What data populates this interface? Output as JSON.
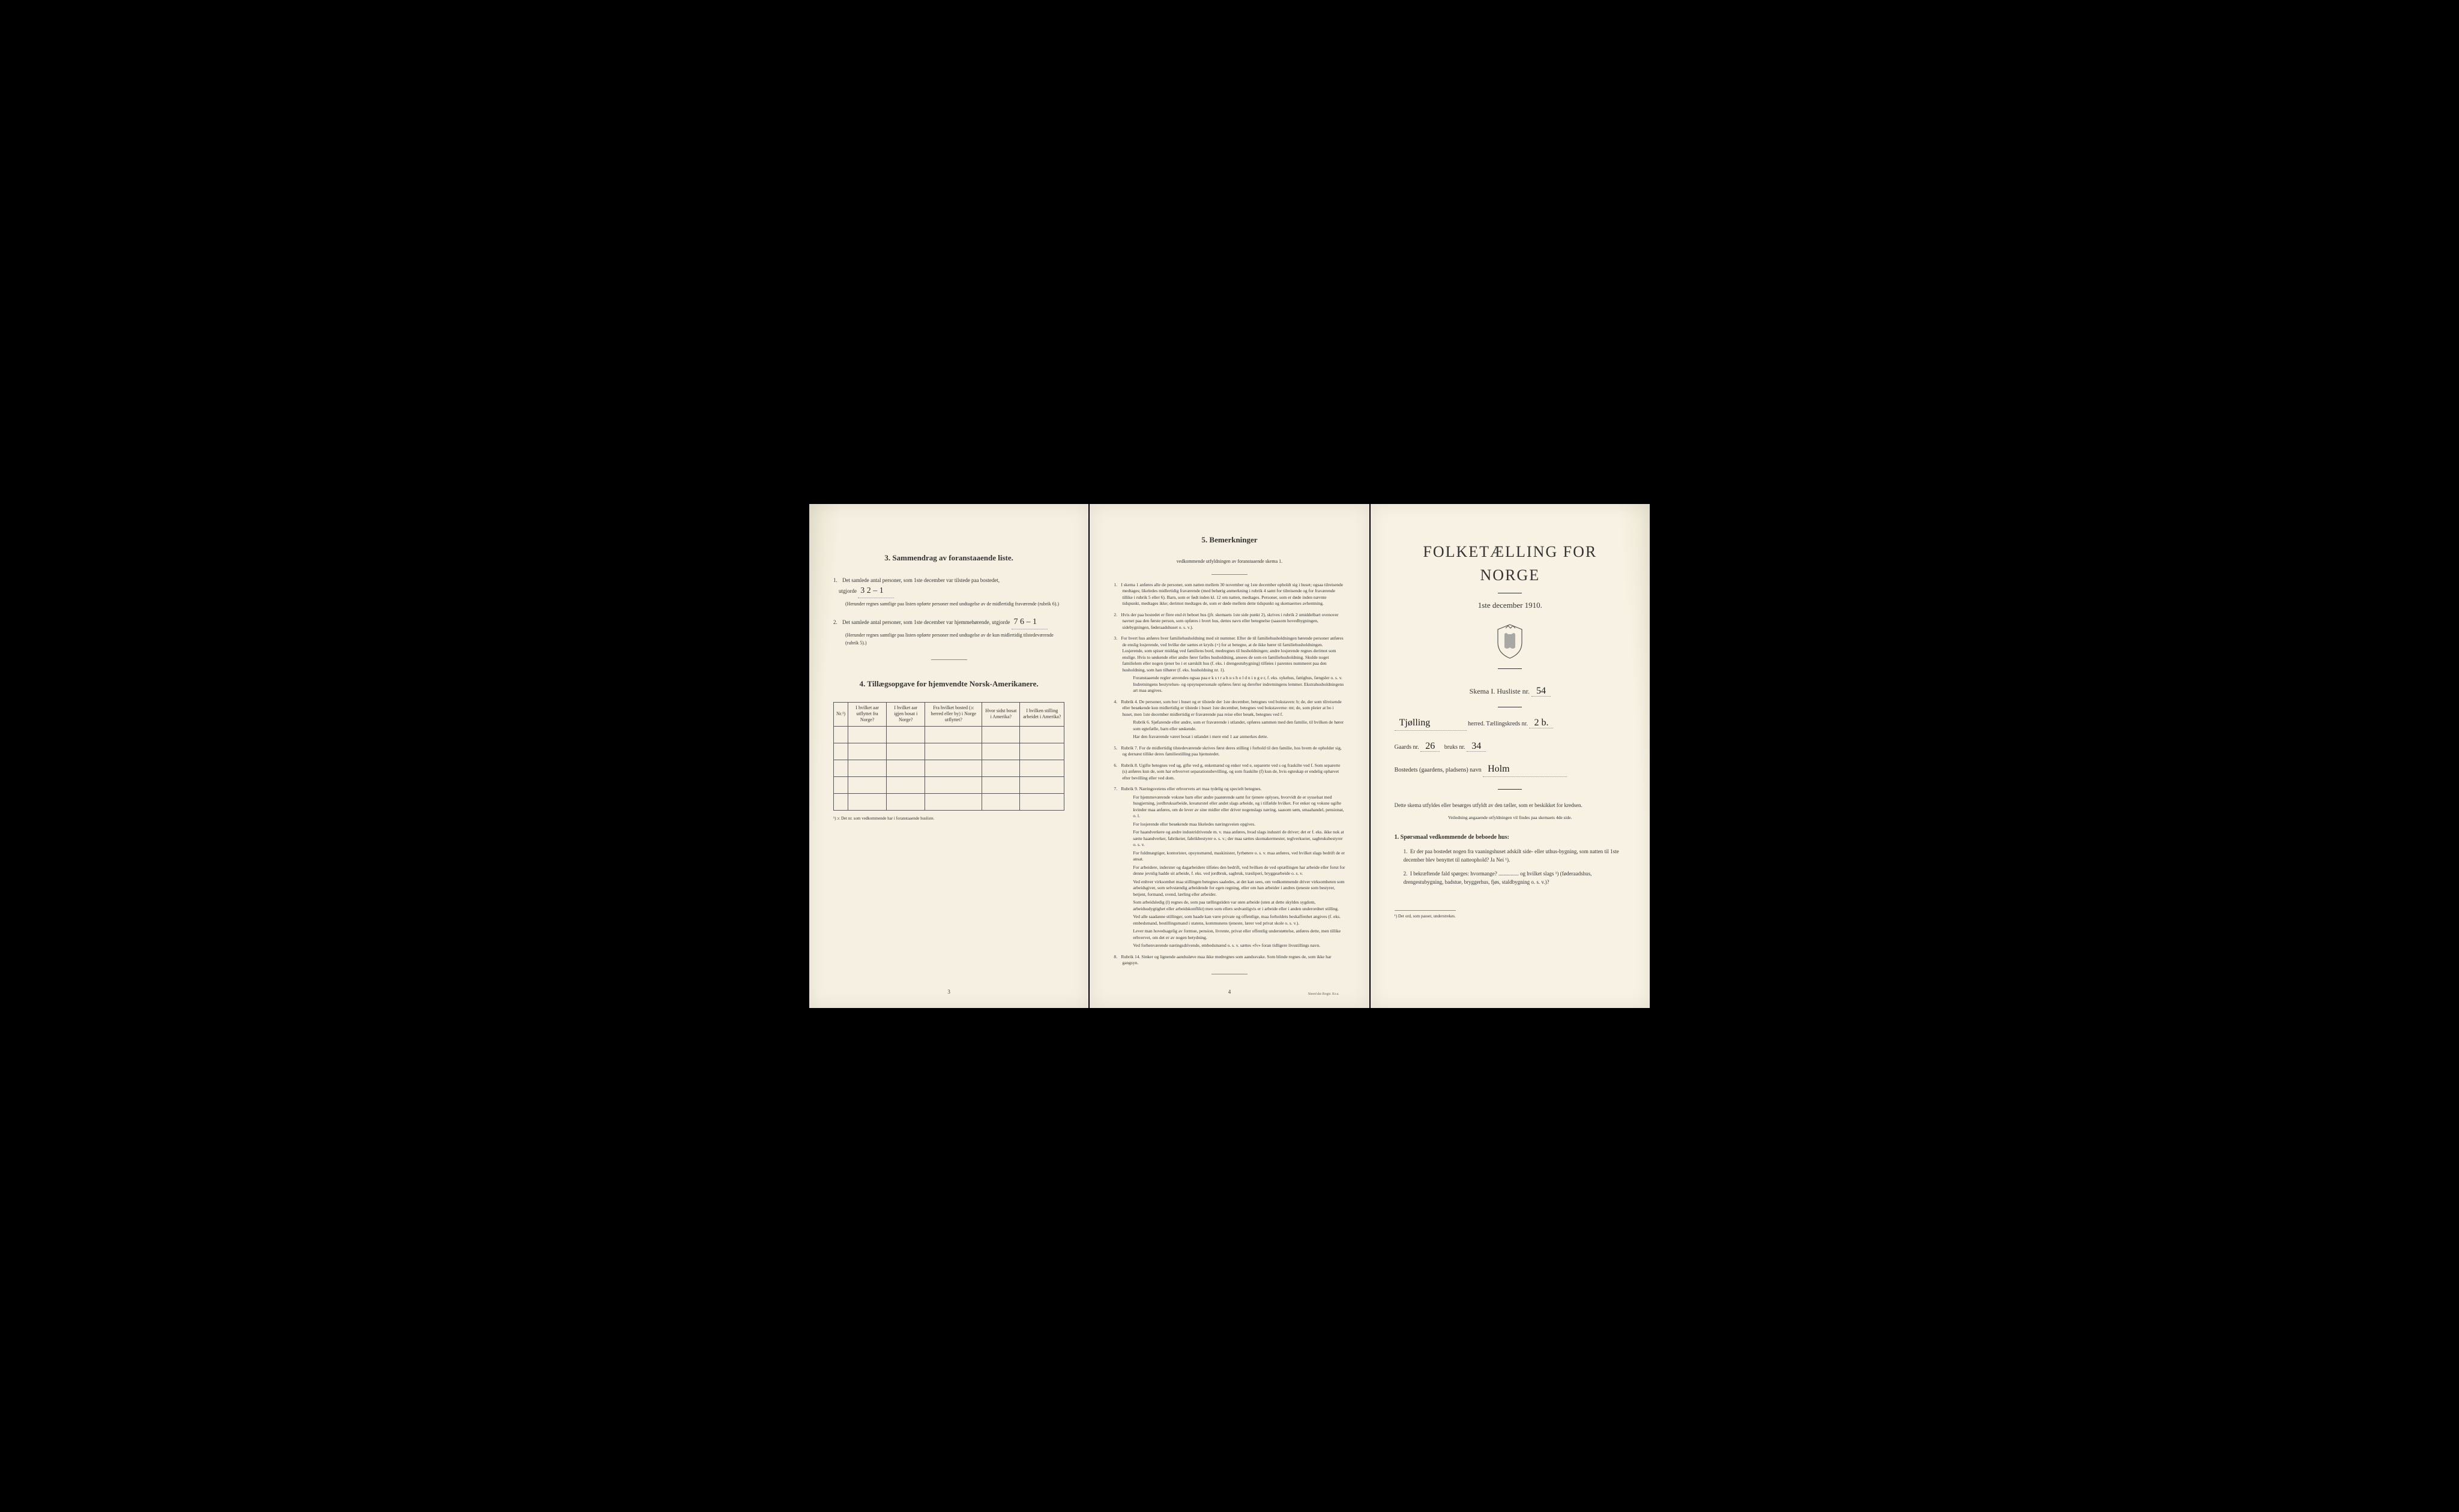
{
  "page1": {
    "section3_title": "3.   Sammendrag av foranstaaende liste.",
    "item1_text": "Det samlede antal personer, som 1ste december var tilstede paa bostedet,",
    "item1_label": "utgjorde",
    "item1_value": "3       2 – 1",
    "item1_note": "(Herunder regnes samtlige paa listen opførte personer med undtagelse av de midlertidig fraværende (rubrik 6).)",
    "item2_text": "Det samlede antal personer, som 1ste december var hjemmehørende, utgjorde",
    "item2_value": "7       6 – 1",
    "item2_note": "(Herunder regnes samtlige paa listen opførte personer med undtagelse av de kun midlertidig tilstedeværende (rubrik 5).)",
    "section4_title": "4.   Tillægsopgave for hjemvendte Norsk-Amerikanere.",
    "table_headers": [
      "Nr.¹)",
      "I hvilket aar utflyttet fra Norge?",
      "I hvilket aar igjen bosat i Norge?",
      "Fra hvilket bosted (ɔ: herred eller by) i Norge utflyttet?",
      "Hvor sidst bosat i Amerika?",
      "I hvilken stilling arbeidet i Amerika?"
    ],
    "table_footnote": "¹) ɔ: Det nr. som vedkommende har i foranstaaende husliste.",
    "page_num": "3"
  },
  "page2": {
    "title": "5.   Bemerkninger",
    "subtitle": "vedkommende utfyldningen av foranstaaende skema 1.",
    "items": [
      {
        "n": "1.",
        "t": "I skema 1 anføres alle de personer, som natten mellem 30 november og 1ste december opholdt sig i huset; ogsaa tilreisende medtages; likeledes midlertidig fraværende (med behørig anmerkning i rubrik 4 samt for tilreisende og for fraværende tillike i rubrik 5 eller 6). Barn, som er født inden kl. 12 om natten, medtages.  Personer, som er døde inden nævnte tidspunkt, medtages ikke; derimot medtages de, som er døde mellem dette tidspunkt og skemaernes avhentning."
      },
      {
        "n": "2.",
        "t": "Hvis der paa bostedet er flere end ét beboet hus (jfr. skemaets 1ste side punkt 2), skrives i rubrik 2 umiddelbart ovenover navnet paa den første person, som opføres i hvert hus, dettes navn eller betegnelse (saasom hovedbygningen, sidebygningen, føderaadshuset o. s. v.)."
      },
      {
        "n": "3.",
        "t": "For hvert hus anføres hver familiehusholdning med sit nummer. Efter de til familiehusholdningen hørende personer anføres de enslig losjerende, ved hvilke der sættes et kryds (×) for at betegne, at de ikke hører til familiehusholdningen.  Losjerende, som spiser middag ved familiens bord, medregnes til husholdningen; andre losjerende regnes derimot som enslige. Hvis to søskende eller andre fører fælles husholdning, ansees de som en familiehusholdning. Skulde noget familielem eller nogen tjener bo i et særskilt hus (f. eks. i drengestubygning) tilføies i parentes nummeret paa den husholdning, som han tilhører (f. eks. husholdning nr. 1).",
        "subs": [
          "Foranstaaende regler anvendes ogsaa paa e k s t r a h u s h o l d n i n g e r, f. eks. sykehus, fattighus, fængsler o. s. v.  Indretningens bestyrelses- og opsynspersonale opføres først og derefter indretningens lemmer.  Ekstrahusholdningens art maa angives."
        ]
      },
      {
        "n": "4.",
        "t": "Rubrik 4.  De personer, som bor i huset og er tilstede der 1ste december, betegnes ved bokstaven:  b;  de, der som tilreisende eller besøkende kun midlertidig er tilstede i huset 1ste december, betegnes ved bokstaverne:  mt;  de, som pleier at bo i huset, men 1ste december midlertidig er fraværende paa reise eller besøk, betegnes ved f.",
        "subs": [
          "Rubrik 6.  Sjøfarende eller andre, som er fraværende i utlandet, opføres sammen med den familie, til hvilken de hører som egtefælle, barn eller søskende.",
          "Har den fraværende været bosat i utlandet i mere end 1 aar anmerkes dette."
        ]
      },
      {
        "n": "5.",
        "t": "Rubrik 7.  For de midlertidig tilstedeværende skrives først deres stilling i forhold til den familie, hos hvem de opholder sig, og dernæst tillike deres familiestilling paa hjemstedet."
      },
      {
        "n": "6.",
        "t": "Rubrik 8.  Ugifte betegnes ved ug, gifte ved g, enkemænd og enker ved e, separerte ved s og fraskilte ved f.  Som separerte (s) anføres kun de, som har erhvervet separationsbevilling, og som fraskilte (f) kun de, hvis egteskap er endelig ophævet efter bevilling eller ved dom."
      },
      {
        "n": "7.",
        "t": "Rubrik 9.  Næringsveiens eller erhvervets art maa tydelig og specielt betegnes.",
        "subs": [
          "For hjemmeværende voksne barn eller andre paarørende samt for tjenere oplyses, hvorvidt de er sysselsat med husgjerning, jordbruksarbeide, kreaturstel eller andet slags arbeide, og i tilfælde hvilket.  For enker og voksne ugifte kvinder maa anføres, om de lever av sine midler eller driver nogenslags næring, saasom søm, smaahandel, pensionat, o. l.",
          "For losjerende eller besøkende maa likeledes næringsveien opgives.",
          "For haandverkere og andre industridrivende m. v. maa anføres, hvad slags industri de driver; det er f. eks. ikke nok at sætte haandverker, fabrikeier, fabrikbestyrer o. s. v.; der maa sættes skomakermester, teglverkseier, sagbruksbestyrer o. s. v.",
          "For fuldmægtiger, kontorister, opsynsmænd, maskinister, fyrbøtere o. s. v. maa anføres, ved hvilket slags bedrift de er ansat.",
          "For arbeidere, inderster og dagarbeidere tilføies den bedrift, ved hvilken de ved optællingen har arbeide eller forut for denne jevnlig hadde sit arbeide, f. eks. ved jordbruk, sagbruk, træsliperi, bryggearbeide o. s. v.",
          "Ved enhver virksomhet maa stillingen betegnes saaledes, at det kan sees, om vedkommende driver virksomheten som arbeidsgiver, som selvstændig arbeidende for egen regning, eller om han arbeider i andres tjeneste som bestyrer, betjent, formand, svend, lærling eller arbeider.",
          "Som arbeidsledig (l) regnes de, som paa tællingstiden var uten arbeide (uten at dette skyldes sygdom, arbeidsudygtighet eller arbeidskonflikt) men som ellers sedvanligvis er i arbeide eller i anden underordnet stilling.",
          "Ved alle saadanne stillinger, som baade kan være private og offentlige, maa forholdets beskaffenhet angives (f. eks. embedsmand, bestillingsmand i statens, kommunens tjeneste, lærer ved privat skole o. s. v.).",
          "Lever man hovedsagelig av formue, pension, livrente, privat eller offentlig understøttelse, anføres dette, men tillike erhvervet, om det er av nogen betydning.",
          "Ved forhenværende næringsdrivende, embedsmænd o. s. v. sættes «fv» foran tidligere livsstillings navn."
        ]
      },
      {
        "n": "8.",
        "t": "Rubrik 14.  Sinker og lignende aandssløve maa ikke medregnes som aandssvake. Som blinde regnes de, som ikke har gangsyn."
      }
    ],
    "page_num": "4",
    "printer": "Steen'ske Bogtr.  Kr.a."
  },
  "page3": {
    "main_title": "FOLKETÆLLING FOR NORGE",
    "date": "1ste december 1910.",
    "skema_label": "Skema  I.   Husliste nr.",
    "husliste_nr": "54",
    "herred_value": "Tjølling",
    "herred_label": "herred.   Tællingskreds nr.",
    "kreds_nr": "2 b.",
    "gaards_label": "Gaards nr.",
    "gaards_nr": "26",
    "bruks_label": "bruks nr.",
    "bruks_nr": "34",
    "bosted_label": "Bostedets (gaardens, pladsens) navn",
    "bosted_value": "Holm",
    "instruction": "Dette skema utfyldes eller besørges utfyldt av den tæller, som er beskikket for kredsen.",
    "instruction_sub": "Veiledning angaaende utfyldningen vil findes paa skemaets 4de side.",
    "q_header": "1.  Spørsmaal vedkommende de beboede hus:",
    "q1": "Er der paa bostedet nogen fra vaaningshuset adskilt side- eller uthus-bygning, som natten til 1ste december blev benyttet til natteophold?   Ja   Nei ¹).",
    "q2": "I bekræftende fald spørges:  hvormange? ............... og hvilket slags ¹) (føderaadshus, drengestubygning, badstue, bryggerhus, fjøs, staldbygning o. s. v.)?",
    "footnote": "¹) Det ord, som passer, understrekes."
  }
}
